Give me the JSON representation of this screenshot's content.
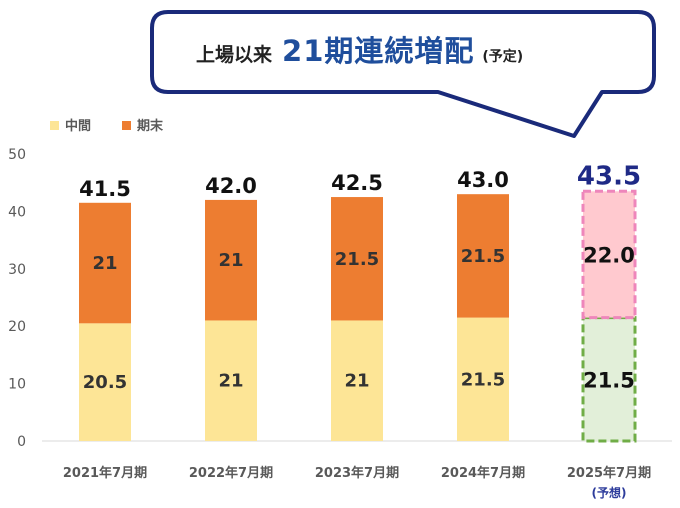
{
  "callout": {
    "prefix": "上場以来",
    "main": "21期連続増配",
    "suffix": "(予定)"
  },
  "chart_data": {
    "type": "bar",
    "stacked": true,
    "categories": [
      "2021年7月期",
      "2022年7月期",
      "2023年7月期",
      "2024年7月期",
      "2025年7月期"
    ],
    "category_notes": [
      "",
      "",
      "",
      "",
      "(予想)"
    ],
    "series": [
      {
        "name": "中間",
        "values": [
          20.5,
          21,
          21,
          21.5,
          21.5
        ],
        "labels": [
          "20.5",
          "21",
          "21",
          "21.5",
          "21.5"
        ]
      },
      {
        "name": "期末",
        "values": [
          21,
          21,
          21.5,
          21.5,
          22.0
        ],
        "labels": [
          "21",
          "21",
          "21.5",
          "21.5",
          "22.0"
        ]
      }
    ],
    "totals": [
      "41.5",
      "42.0",
      "42.5",
      "43.0",
      "43.5"
    ],
    "ylim": [
      0,
      50
    ],
    "yticks": [
      "0",
      "10",
      "20",
      "30",
      "40",
      "50"
    ],
    "legend_position": "top-left",
    "grid": false,
    "forecast_index": 4
  },
  "colors": {
    "interim": "#fde596",
    "final": "#ed7d31",
    "forecast_interim_fill": "#e2efd9",
    "forecast_interim_border": "#70ad47",
    "forecast_final_fill": "#ffc9cf",
    "forecast_final_border": "#ee86bb",
    "highlight_text": "#1f2a86",
    "note_text": "#2e3d9c",
    "callout_border": "#1a2a7a"
  }
}
